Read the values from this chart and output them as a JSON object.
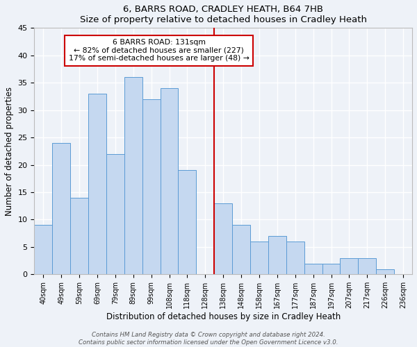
{
  "title": "6, BARRS ROAD, CRADLEY HEATH, B64 7HB",
  "subtitle": "Size of property relative to detached houses in Cradley Heath",
  "xlabel": "Distribution of detached houses by size in Cradley Heath",
  "ylabel": "Number of detached properties",
  "bar_labels": [
    "40sqm",
    "49sqm",
    "59sqm",
    "69sqm",
    "79sqm",
    "89sqm",
    "99sqm",
    "108sqm",
    "118sqm",
    "128sqm",
    "138sqm",
    "148sqm",
    "158sqm",
    "167sqm",
    "177sqm",
    "187sqm",
    "197sqm",
    "207sqm",
    "217sqm",
    "226sqm",
    "236sqm"
  ],
  "bar_values": [
    9,
    24,
    14,
    33,
    22,
    36,
    32,
    34,
    19,
    0,
    13,
    9,
    6,
    7,
    6,
    2,
    2,
    3,
    3,
    1,
    0
  ],
  "bar_color": "#c5d8f0",
  "bar_edge_color": "#5b9bd5",
  "ylim": [
    0,
    45
  ],
  "yticks": [
    0,
    5,
    10,
    15,
    20,
    25,
    30,
    35,
    40,
    45
  ],
  "reference_line_x": 9.5,
  "annotation_title": "6 BARRS ROAD: 131sqm",
  "annotation_line1": "← 82% of detached houses are smaller (227)",
  "annotation_line2": "17% of semi-detached houses are larger (48) →",
  "annotation_box_color": "#ffffff",
  "annotation_box_edge_color": "#cc0000",
  "ref_line_color": "#cc0000",
  "background_color": "#eef2f8",
  "grid_color": "#ffffff",
  "footer_line1": "Contains HM Land Registry data © Crown copyright and database right 2024.",
  "footer_line2": "Contains public sector information licensed under the Open Government Licence v3.0."
}
